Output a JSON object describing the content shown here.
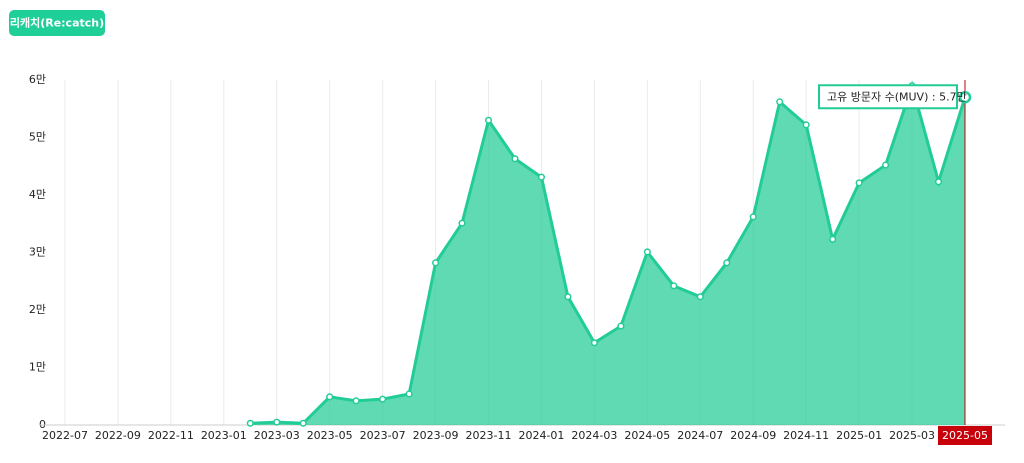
{
  "button": "리캐치(Re:catch)",
  "chart_data": {
    "type": "area",
    "x": [
      "2023-02",
      "2023-03",
      "2023-04",
      "2023-05",
      "2023-06",
      "2023-07",
      "2023-08",
      "2023-09",
      "2023-10",
      "2023-11",
      "2023-12",
      "2024-01",
      "2024-02",
      "2024-03",
      "2024-04",
      "2024-05",
      "2024-06",
      "2024-07",
      "2024-08",
      "2024-09",
      "2024-10",
      "2024-11",
      "2024-12",
      "2025-01",
      "2025-02",
      "2025-03",
      "2025-04",
      "2025-05"
    ],
    "series": [
      {
        "name": "고유 방문자 수(MUV)",
        "color": "#22cc96",
        "values": [
          300,
          500,
          300,
          4900,
          4200,
          4500,
          5400,
          28200,
          35100,
          53000,
          46300,
          43100,
          22300,
          14300,
          17200,
          30100,
          24200,
          22300,
          28200,
          36200,
          56200,
          52200,
          32300,
          42100,
          45200,
          59000,
          42300,
          57000
        ],
        "value_labels": [
          null,
          null,
          null,
          null,
          null,
          null,
          null,
          null,
          null,
          null,
          null,
          null,
          null,
          null,
          null,
          null,
          null,
          null,
          null,
          null,
          null,
          null,
          null,
          null,
          null,
          null,
          null,
          "5.7만"
        ]
      }
    ],
    "xlim": [
      "2022-06",
      "2025-05"
    ],
    "xticks": [
      "2022-07",
      "2022-09",
      "2022-11",
      "2023-01",
      "2023-03",
      "2023-05",
      "2023-07",
      "2023-09",
      "2023-11",
      "2024-01",
      "2024-03",
      "2024-05",
      "2024-07",
      "2024-09",
      "2024-11",
      "2025-01",
      "2025-03",
      "2025-05"
    ],
    "ylim": [
      0,
      60000
    ],
    "yticks": [
      0,
      {
        "value": 10000,
        "label": "1만"
      },
      {
        "value": 20000,
        "label": "2만"
      },
      {
        "value": 30000,
        "label": "3만"
      },
      {
        "value": 40000,
        "label": "4만"
      },
      {
        "value": 50000,
        "label": "5만"
      },
      {
        "value": 60000,
        "label": "6만"
      }
    ],
    "grid": "x"
  }
}
